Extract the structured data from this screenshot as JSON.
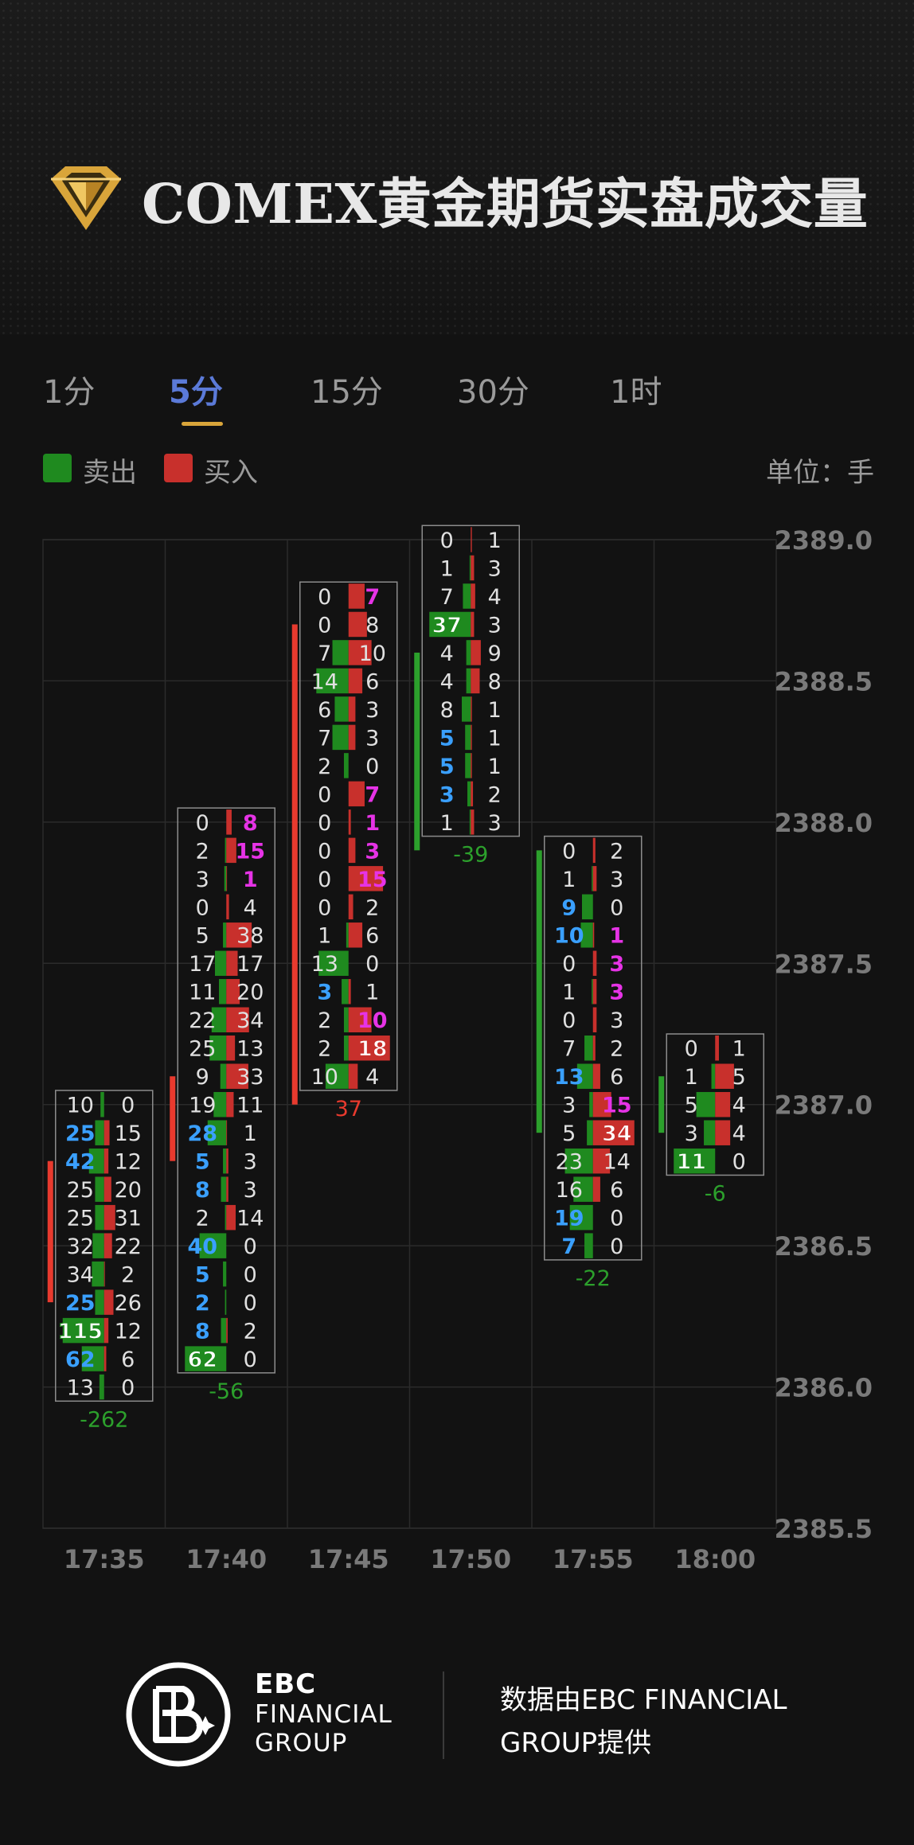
{
  "header": {
    "title": "COMEX黄金期货实盘成交量",
    "logo_icon": "gold-diamond-icon",
    "accent_color": "#d9a53a"
  },
  "tabs": [
    {
      "label": "1分",
      "active": false
    },
    {
      "label": "5分",
      "active": true
    },
    {
      "label": "15分",
      "active": false
    },
    {
      "label": "30分",
      "active": false
    },
    {
      "label": "1时",
      "active": false
    }
  ],
  "legend": {
    "sell_label": "卖出",
    "buy_label": "买入",
    "sell_color": "#1f8a1f",
    "buy_color": "#c8302c",
    "unit_label": "单位：手"
  },
  "chart_data": {
    "type": "footprint",
    "price_step": 0.1,
    "y_ticks": [
      "2389.0",
      "2388.5",
      "2388.0",
      "2387.5",
      "2387.0",
      "2386.5",
      "2386.0",
      "2385.5"
    ],
    "ylim": [
      2385.5,
      2389.0
    ],
    "times": [
      "17:35",
      "17:40",
      "17:45",
      "17:50",
      "17:55",
      "18:00"
    ],
    "colors": {
      "sell": "#1f8a1f",
      "buy": "#c8302c",
      "delta_positive": "#e83a2e",
      "delta_negative": "#2ca02c",
      "sell_imbalance": "#3aa0ff",
      "buy_imbalance": "#e633e6",
      "grid": "#2b2b2b",
      "axis_text": "#7a7a7a"
    },
    "bars": [
      {
        "time": "17:35",
        "top_price": 2387.0,
        "delta": "-262",
        "delta_side": "sell",
        "body_top": 2386.8,
        "body_bottom": 2386.3,
        "body_color": "buy",
        "levels": [
          {
            "sell": "10",
            "buy": "0"
          },
          {
            "sell": "25",
            "buy": "15",
            "sell_style": "blue"
          },
          {
            "sell": "42",
            "buy": "12",
            "sell_style": "blue"
          },
          {
            "sell": "25",
            "buy": "20"
          },
          {
            "sell": "25",
            "buy": "31"
          },
          {
            "sell": "32",
            "buy": "22"
          },
          {
            "sell": "34",
            "buy": "2"
          },
          {
            "sell": "25",
            "buy": "26",
            "sell_style": "blue"
          },
          {
            "sell": "115",
            "buy": "12",
            "sell_style": "max"
          },
          {
            "sell": "62",
            "buy": "6",
            "sell_style": "blue"
          },
          {
            "sell": "13",
            "buy": "0"
          }
        ]
      },
      {
        "time": "17:40",
        "top_price": 2388.0,
        "delta": "-56",
        "delta_side": "sell",
        "body_top": 2387.1,
        "body_bottom": 2386.8,
        "body_color": "buy",
        "levels": [
          {
            "sell": "0",
            "buy": "8",
            "buy_style": "magenta"
          },
          {
            "sell": "2",
            "buy": "15",
            "buy_style": "magenta"
          },
          {
            "sell": "3",
            "buy": "1",
            "buy_style": "magenta"
          },
          {
            "sell": "0",
            "buy": "4"
          },
          {
            "sell": "5",
            "buy": "38"
          },
          {
            "sell": "17",
            "buy": "17"
          },
          {
            "sell": "11",
            "buy": "20"
          },
          {
            "sell": "22",
            "buy": "34"
          },
          {
            "sell": "25",
            "buy": "13"
          },
          {
            "sell": "9",
            "buy": "33"
          },
          {
            "sell": "19",
            "buy": "11"
          },
          {
            "sell": "28",
            "buy": "1",
            "sell_style": "blue"
          },
          {
            "sell": "5",
            "buy": "3",
            "sell_style": "blue"
          },
          {
            "sell": "8",
            "buy": "3",
            "sell_style": "blue"
          },
          {
            "sell": "2",
            "buy": "14"
          },
          {
            "sell": "40",
            "buy": "0",
            "sell_style": "blue"
          },
          {
            "sell": "5",
            "buy": "0",
            "sell_style": "blue"
          },
          {
            "sell": "2",
            "buy": "0",
            "sell_style": "blue"
          },
          {
            "sell": "8",
            "buy": "2",
            "sell_style": "blue"
          },
          {
            "sell": "62",
            "buy": "0",
            "sell_style": "max"
          }
        ]
      },
      {
        "time": "17:45",
        "top_price": 2388.8,
        "delta": "37",
        "delta_side": "buy",
        "body_top": 2388.7,
        "body_bottom": 2387.0,
        "body_color": "buy",
        "levels": [
          {
            "sell": "0",
            "buy": "7",
            "buy_style": "magenta"
          },
          {
            "sell": "0",
            "buy": "8"
          },
          {
            "sell": "7",
            "buy": "10"
          },
          {
            "sell": "14",
            "buy": "6"
          },
          {
            "sell": "6",
            "buy": "3"
          },
          {
            "sell": "7",
            "buy": "3"
          },
          {
            "sell": "2",
            "buy": "0"
          },
          {
            "sell": "0",
            "buy": "7",
            "buy_style": "magenta"
          },
          {
            "sell": "0",
            "buy": "1",
            "buy_style": "magenta"
          },
          {
            "sell": "0",
            "buy": "3",
            "buy_style": "magenta"
          },
          {
            "sell": "0",
            "buy": "15",
            "buy_style": "magenta"
          },
          {
            "sell": "0",
            "buy": "2"
          },
          {
            "sell": "1",
            "buy": "6"
          },
          {
            "sell": "13",
            "buy": "0"
          },
          {
            "sell": "3",
            "buy": "1",
            "sell_style": "blue"
          },
          {
            "sell": "2",
            "buy": "10",
            "buy_style": "magenta"
          },
          {
            "sell": "2",
            "buy": "18",
            "buy_style": "max"
          },
          {
            "sell": "10",
            "buy": "4"
          }
        ]
      },
      {
        "time": "17:50",
        "top_price": 2389.0,
        "delta": "-39",
        "delta_side": "sell",
        "body_top": 2388.6,
        "body_bottom": 2387.9,
        "body_color": "sell",
        "levels": [
          {
            "sell": "0",
            "buy": "1"
          },
          {
            "sell": "1",
            "buy": "3"
          },
          {
            "sell": "7",
            "buy": "4"
          },
          {
            "sell": "37",
            "buy": "3",
            "sell_style": "max"
          },
          {
            "sell": "4",
            "buy": "9"
          },
          {
            "sell": "4",
            "buy": "8"
          },
          {
            "sell": "8",
            "buy": "1"
          },
          {
            "sell": "5",
            "buy": "1",
            "sell_style": "blue"
          },
          {
            "sell": "5",
            "buy": "1",
            "sell_style": "blue"
          },
          {
            "sell": "3",
            "buy": "2",
            "sell_style": "blue"
          },
          {
            "sell": "1",
            "buy": "3"
          }
        ]
      },
      {
        "time": "17:55",
        "top_price": 2387.9,
        "delta": "-22",
        "delta_side": "sell",
        "body_top": 2387.9,
        "body_bottom": 2386.9,
        "body_color": "sell",
        "levels": [
          {
            "sell": "0",
            "buy": "2"
          },
          {
            "sell": "1",
            "buy": "3"
          },
          {
            "sell": "9",
            "buy": "0",
            "sell_style": "blue"
          },
          {
            "sell": "10",
            "buy": "1",
            "sell_style": "blue",
            "buy_style": "magenta"
          },
          {
            "sell": "0",
            "buy": "3",
            "buy_style": "magenta"
          },
          {
            "sell": "1",
            "buy": "3",
            "buy_style": "magenta"
          },
          {
            "sell": "0",
            "buy": "3"
          },
          {
            "sell": "7",
            "buy": "2"
          },
          {
            "sell": "13",
            "buy": "6",
            "sell_style": "blue"
          },
          {
            "sell": "3",
            "buy": "15",
            "buy_style": "magenta"
          },
          {
            "sell": "5",
            "buy": "34",
            "buy_style": "max"
          },
          {
            "sell": "23",
            "buy": "14"
          },
          {
            "sell": "16",
            "buy": "6"
          },
          {
            "sell": "19",
            "buy": "0",
            "sell_style": "blue"
          },
          {
            "sell": "7",
            "buy": "0",
            "sell_style": "blue"
          }
        ]
      },
      {
        "time": "18:00",
        "top_price": 2387.2,
        "delta": "-6",
        "delta_side": "sell",
        "body_top": 2387.1,
        "body_bottom": 2386.9,
        "body_color": "sell",
        "levels": [
          {
            "sell": "0",
            "buy": "1"
          },
          {
            "sell": "1",
            "buy": "5"
          },
          {
            "sell": "5",
            "buy": "4"
          },
          {
            "sell": "3",
            "buy": "4"
          },
          {
            "sell": "11",
            "buy": "0",
            "sell_style": "max"
          }
        ]
      }
    ]
  },
  "footer": {
    "logo_icon": "ebc-logo-icon",
    "brand_line1": "EBC",
    "brand_line2": "FINANCIAL",
    "brand_line3": "GROUP",
    "provider_line1": "数据由EBC FINANCIAL",
    "provider_line2": "GROUP提供"
  }
}
